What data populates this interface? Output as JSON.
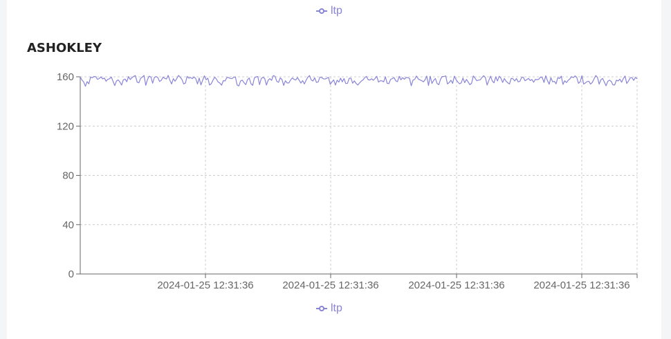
{
  "top_legend": {
    "label": "ltp"
  },
  "colors": {
    "line": "#8884d8",
    "axis": "#666666",
    "grid": "#cccccc"
  },
  "chart_data": {
    "type": "line",
    "title": "ASHOKLEY",
    "xlabel": "",
    "ylabel": "",
    "ylim": [
      0,
      160
    ],
    "yticks": [
      0,
      40,
      80,
      120,
      160
    ],
    "xtick_labels": [
      "2024-01-25 12:31:36",
      "2024-01-25 12:31:36",
      "2024-01-25 12:31:36",
      "2024-01-25 12:31:36"
    ],
    "grid": true,
    "legend_position": "bottom",
    "series": [
      {
        "name": "ltp",
        "values": [
          159.9,
          157.4,
          155.8,
          152.3,
          156.1,
          154.3,
          159.8,
          159.2,
          160.2,
          160.1,
          157.9,
          158.6,
          159.9,
          158.3,
          159.0,
          156.4,
          158.0,
          158.4,
          159.8,
          156.4,
          152.9,
          156.6,
          157.5,
          155.8,
          153.3,
          157.6,
          158.1,
          156.0,
          160.2,
          157.8,
          159.3,
          160.3,
          161.0,
          155.7,
          155.1,
          158.7,
          159.8,
          161.1,
          153.1,
          157.8,
          160.5,
          159.8,
          154.8,
          159.4,
          160.2,
          159.4,
          156.2,
          157.1,
          159.7,
          158.8,
          158.2,
          161.1,
          157.1,
          154.2,
          158.5,
          156.4,
          158.6,
          161.1,
          159.6,
          157.8,
          154.2,
          154.9,
          160.3,
          158.9,
          159.4,
          158.5,
          159.9,
          158.5,
          154.2,
          159.0,
          153.4,
          157.2,
          160.8,
          157.6,
          158.9,
          153.3,
          154.4,
          157.3,
          159.7,
          158.1,
          155.7,
          154.9,
          153.2,
          156.9,
          156.6,
          159.3,
          159.4,
          158.7,
          158.5,
          159.7,
          159.7,
          153.3,
          152.6,
          156.6,
          157.3,
          155.2,
          153.6,
          157.6,
          159.1,
          154.5,
          153.0,
          159.1,
          159.9,
          160.2,
          153.6,
          158.6,
          159.6,
          158.6,
          153.3,
          157.2,
          158.5,
          157.1,
          161.0,
          160.3,
          156.3,
          155.5,
          159.1,
          157.9,
          153.0,
          156.8,
          155.0,
          155.0,
          157.4,
          159.1,
          157.9,
          157.4,
          159.4,
          157.2,
          154.9,
          156.9,
          154.2,
          157.2,
          159.6,
          161.0,
          157.4,
          156.6,
          159.2,
          155.4,
          155.8,
          159.7,
          159.4,
          158.4,
          158.2,
          158.8,
          159.5,
          153.9,
          155.8,
          157.5,
          153.3,
          157.2,
          155.7,
          158.9,
          155.9,
          158.6,
          154.6,
          154.7,
          158.8,
          158.9,
          154.8,
          156.7,
          154.6,
          153.3,
          155.0,
          156.5,
          157.5,
          159.2,
          160.3,
          157.6,
          157.4,
          158.4,
          157.2,
          158.6,
          160.4,
          155.7,
          156.8,
          156.7,
          155.9,
          160.0,
          154.8,
          154.4,
          157.9,
          158.5,
          159.4,
          156.8,
          156.0,
          160.4,
          157.6,
          159.3,
          158.0,
          159.4,
          159.3,
          158.7,
          152.7,
          157.3,
          157.9,
          160.6,
          158.4,
          157.5,
          156.9,
          155.9,
          157.5,
          160.6,
          153.0,
          160.4,
          154.6,
          157.1,
          158.6,
          154.5,
          153.6,
          158.1,
          160.2,
          160.3,
          160.7,
          154.2,
          155.3,
          157.2,
          154.7,
          160.5,
          157.6,
          155.8,
          154.3,
          155.1,
          159.0,
          155.2,
          157.9,
          155.8,
          153.6,
          154.8,
          160.7,
          158.9,
          156.8,
          157.3,
          157.5,
          159.4,
          160.9,
          159.4,
          153.3,
          157.1,
          160.5,
          156.6,
          155.1,
          160.0,
          156.6,
          160.4,
          158.9,
          155.4,
          158.6,
          156.4,
          155.1,
          154.2,
          158.8,
          158.4,
          156.6,
          158.6,
          155.9,
          156.3,
          159.4,
          159.6,
          156.8,
          157.7,
          158.7,
          157.0,
          157.8,
          155.6,
          157.9,
          157.6,
          158.1,
          159.8,
          159.3,
          155.4,
          160.8,
          156.9,
          154.0,
          159.3,
          155.9,
          156.3,
          154.3,
          159.3,
          158.6,
          160.5,
          153.8,
          156.8,
          155.3,
          157.1,
          158.3,
          160.1,
          159.3,
          160.7,
          159.5,
          154.7,
          156.0,
          160.9,
          154.1,
          155.0,
          156.1,
          156.4,
          154.1,
          155.4,
          158.2,
          161.0,
          159.6,
          154.0,
          157.6,
          158.7,
          155.7,
          152.7,
          156.3,
          157.3,
          156.2,
          153.4,
          153.4,
          157.3,
          156.6,
          158.1,
          155.6,
          158.5,
          160.6,
          154.6,
          156.6,
          159.1,
          159.4,
          157.1,
          159.5,
          158.4
        ]
      }
    ]
  }
}
